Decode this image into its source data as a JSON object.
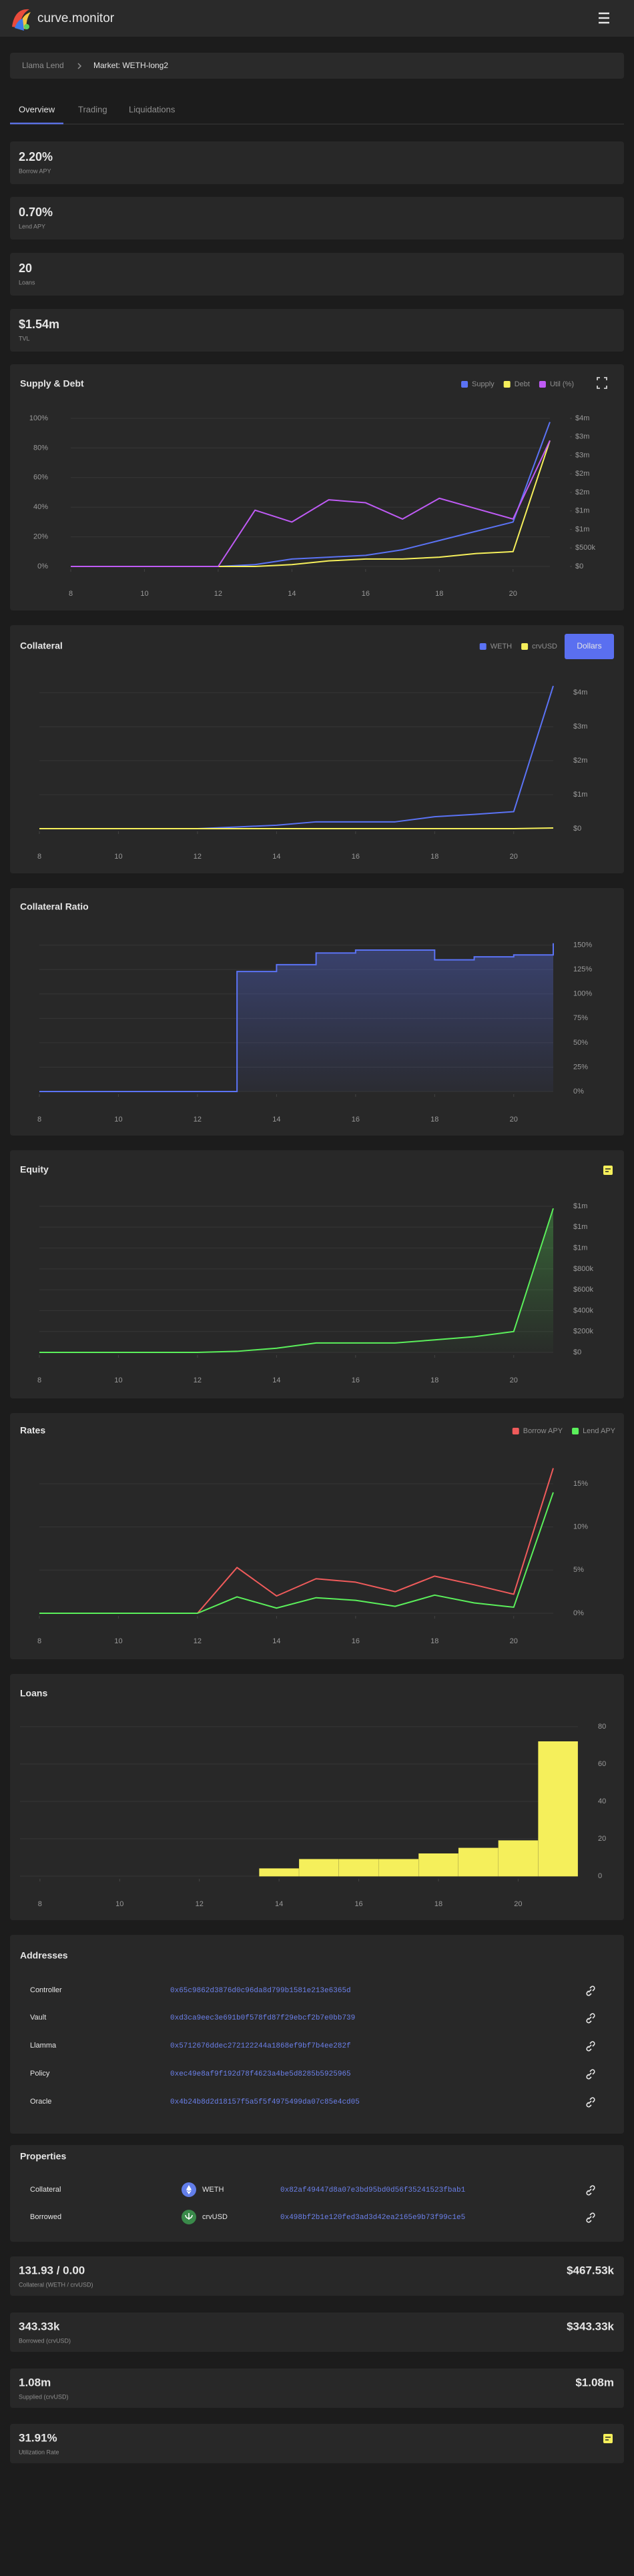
{
  "header": {
    "brand": "curve.monitor"
  },
  "breadcrumb": {
    "parent": "Llama Lend",
    "current": "Market: WETH-long2"
  },
  "tabs": [
    "Overview",
    "Trading",
    "Liquidations"
  ],
  "kpis": [
    {
      "value": "2.20%",
      "label": "Borrow APY"
    },
    {
      "value": "0.70%",
      "label": "Lend APY"
    },
    {
      "value": "20",
      "label": "Loans"
    },
    {
      "value": "$1.54m",
      "label": "TVL"
    }
  ],
  "chart_data": [
    {
      "type": "line",
      "title": "Supply & Debt",
      "x": [
        8,
        9,
        10,
        11,
        12,
        13,
        14,
        15,
        16,
        17,
        18,
        19,
        20,
        21
      ],
      "xlim": [
        8,
        21
      ],
      "xticks": [
        8,
        10,
        12,
        14,
        16,
        18,
        20
      ],
      "ylim": [
        0,
        100
      ],
      "yticks": [
        {
          "value": 0,
          "label": "0%"
        },
        {
          "value": 20,
          "label": "20%"
        },
        {
          "value": 40,
          "label": "40%"
        },
        {
          "value": 60,
          "label": "60%"
        },
        {
          "value": 80,
          "label": "80%"
        },
        {
          "value": 100,
          "label": "100%"
        }
      ],
      "y2lim": [
        0,
        4000000
      ],
      "y2ticks": [
        {
          "value": 0,
          "label": "$0"
        },
        {
          "value": 500000,
          "label": "$500k"
        },
        {
          "value": 1000000,
          "label": "$1m"
        },
        {
          "value": 1500000,
          "label": "$1m"
        },
        {
          "value": 2000000,
          "label": "$2m"
        },
        {
          "value": 2500000,
          "label": "$2m"
        },
        {
          "value": 3000000,
          "label": "$3m"
        },
        {
          "value": 3500000,
          "label": "$3m"
        },
        {
          "value": 4000000,
          "label": "$4m"
        }
      ],
      "grid": true,
      "series": [
        {
          "name": "Supply",
          "color": "#5b73f5",
          "axis": "y2",
          "values": [
            0,
            0,
            0,
            0,
            0,
            50000,
            200000,
            250000,
            300000,
            450000,
            700000,
            950000,
            1200000,
            3900000
          ]
        },
        {
          "name": "Debt",
          "color": "#f5ef5b",
          "axis": "y2",
          "values": [
            0,
            0,
            0,
            0,
            0,
            0,
            50000,
            150000,
            200000,
            200000,
            250000,
            350000,
            400000,
            3400000
          ]
        },
        {
          "name": "Util (%)",
          "color": "#bf5bf5",
          "values": [
            0,
            0,
            0,
            0,
            0,
            38,
            30,
            45,
            43,
            32,
            46,
            39,
            32,
            85
          ]
        }
      ]
    },
    {
      "type": "line",
      "title": "Collateral",
      "button": "Dollars",
      "x": [
        8,
        9,
        10,
        11,
        12,
        13,
        14,
        15,
        16,
        17,
        18,
        19,
        20,
        21
      ],
      "xlim": [
        8,
        21
      ],
      "xticks": [
        8,
        10,
        12,
        14,
        16,
        18,
        20
      ],
      "ylim": [
        0,
        4300000
      ],
      "yticks": [
        {
          "value": 0,
          "label": "$0"
        },
        {
          "value": 1000000,
          "label": "$1m"
        },
        {
          "value": 2000000,
          "label": "$2m"
        },
        {
          "value": 3000000,
          "label": "$3m"
        },
        {
          "value": 4000000,
          "label": "$4m"
        }
      ],
      "y_axis_position": "right",
      "grid": true,
      "series": [
        {
          "name": "WETH",
          "color": "#5b73f5",
          "values": [
            0,
            0,
            0,
            0,
            0,
            50000,
            100000,
            200000,
            200000,
            200000,
            350000,
            420000,
            500000,
            4200000
          ]
        },
        {
          "name": "crvUSD",
          "color": "#f5ef5b",
          "values": [
            0,
            0,
            0,
            0,
            0,
            0,
            0,
            0,
            0,
            0,
            0,
            0,
            0,
            20000
          ]
        }
      ]
    },
    {
      "type": "area",
      "title": "Collateral Ratio",
      "step": true,
      "x": [
        8,
        9,
        10,
        11,
        12,
        13,
        14,
        15,
        16,
        17,
        18,
        19,
        20,
        21
      ],
      "xlim": [
        8,
        21
      ],
      "xticks": [
        8,
        10,
        12,
        14,
        16,
        18,
        20
      ],
      "ylim": [
        0,
        160
      ],
      "yticks": [
        {
          "value": 0,
          "label": "0%"
        },
        {
          "value": 25,
          "label": "25%"
        },
        {
          "value": 50,
          "label": "50%"
        },
        {
          "value": 75,
          "label": "75%"
        },
        {
          "value": 100,
          "label": "100%"
        },
        {
          "value": 125,
          "label": "125%"
        },
        {
          "value": 150,
          "label": "150%"
        }
      ],
      "y_axis_position": "right",
      "grid": true,
      "color": "#5b73f5",
      "values": [
        0,
        0,
        0,
        0,
        0,
        123,
        130,
        142,
        145,
        145,
        135,
        138,
        140,
        152
      ]
    },
    {
      "type": "area",
      "title": "Equity",
      "x": [
        8,
        9,
        10,
        11,
        12,
        13,
        14,
        15,
        16,
        17,
        18,
        19,
        20,
        21
      ],
      "xlim": [
        8,
        21
      ],
      "xticks": [
        8,
        10,
        12,
        14,
        16,
        18,
        20
      ],
      "ylim": [
        0,
        1400000
      ],
      "yticks": [
        {
          "value": 0,
          "label": "$0"
        },
        {
          "value": 200000,
          "label": "$200k"
        },
        {
          "value": 400000,
          "label": "$400k"
        },
        {
          "value": 600000,
          "label": "$600k"
        },
        {
          "value": 800000,
          "label": "$800k"
        },
        {
          "value": 1000000,
          "label": "$1m"
        },
        {
          "value": 1200000,
          "label": "$1m"
        },
        {
          "value": 1400000,
          "label": "$1m"
        }
      ],
      "y_axis_position": "right",
      "grid": true,
      "color": "#5bf05b",
      "values": [
        0,
        0,
        0,
        0,
        0,
        10000,
        40000,
        90000,
        90000,
        90000,
        120000,
        150000,
        200000,
        1380000
      ]
    },
    {
      "type": "line",
      "title": "Rates",
      "x": [
        8,
        9,
        10,
        11,
        12,
        13,
        14,
        15,
        16,
        17,
        18,
        19,
        20,
        21
      ],
      "xlim": [
        8,
        21
      ],
      "xticks": [
        8,
        10,
        12,
        14,
        16,
        18,
        20
      ],
      "ylim": [
        0,
        17
      ],
      "yticks": [
        {
          "value": 0,
          "label": "0%"
        },
        {
          "value": 5,
          "label": "5%"
        },
        {
          "value": 10,
          "label": "10%"
        },
        {
          "value": 15,
          "label": "15%"
        }
      ],
      "y_axis_position": "right",
      "grid": true,
      "series": [
        {
          "name": "Borrow APY",
          "color": "#f05b5b",
          "values": [
            0,
            0,
            0,
            0,
            0,
            5.3,
            2.0,
            4.0,
            3.6,
            2.5,
            4.3,
            3.3,
            2.2,
            16.8
          ]
        },
        {
          "name": "Lend APY",
          "color": "#5bf05b",
          "values": [
            0,
            0,
            0,
            0,
            0,
            1.9,
            0.6,
            1.8,
            1.5,
            0.8,
            2.1,
            1.2,
            0.7,
            14.0
          ]
        }
      ]
    },
    {
      "type": "histogram",
      "title": "Loans",
      "bins": [
        7.5,
        8.5,
        9.5,
        10.5,
        11.5,
        12.5,
        13.5,
        14.5,
        15.5,
        16.5,
        17.5,
        18.5,
        19.5,
        20.5,
        21.5
      ],
      "values": [
        0,
        0,
        0,
        0,
        0,
        0,
        4,
        9,
        9,
        9,
        12,
        15,
        19,
        72
      ],
      "color": "#f5ef5b",
      "xlim": [
        7.5,
        21.5
      ],
      "xticks": [
        8,
        10,
        12,
        14,
        16,
        18,
        20
      ],
      "ylim": [
        0,
        80
      ],
      "yticks": [
        0,
        20,
        40,
        60,
        80
      ],
      "y_axis_position": "right",
      "grid": true
    }
  ],
  "addresses": {
    "title": "Addresses",
    "rows": [
      {
        "label": "Controller",
        "address": "0x65c9862d3876d0c96da8d799b1581e213e6365d"
      },
      {
        "label": "Vault",
        "address": "0xd3ca9eec3e691b0f578fd87f29ebcf2b7e0bb739"
      },
      {
        "label": "Llamma",
        "address": "0x5712676ddec272122244a1868ef9bf7b4ee282f"
      },
      {
        "label": "Policy",
        "address": "0xec49e8af9f192d78f4623a4be5d8285b5925965"
      },
      {
        "label": "Oracle",
        "address": "0x4b24b8d2d18157f5a5f5f4975499da07c85e4cd05"
      }
    ]
  },
  "properties": {
    "title": "Properties",
    "rows": [
      {
        "label": "Collateral",
        "symbol": "WETH",
        "address": "0x82af49447d8a07e3bd95bd0d56f35241523fbab1"
      },
      {
        "label": "Borrowed",
        "symbol": "crvUSD",
        "address": "0x498bf2b1e120fed3ad3d42ea2165e9b73f99c1e5"
      }
    ]
  },
  "stats": [
    {
      "value": "131.93 / 0.00",
      "label": "Collateral (WETH / crvUSD)",
      "usd": "$467.53k"
    },
    {
      "value": "343.33k",
      "label": "Borrowed (crvUSD)",
      "usd": "$343.33k"
    },
    {
      "value": "1.08m",
      "label": "Supplied (crvUSD)",
      "usd": "$1.08m"
    },
    {
      "value": "31.91%",
      "label": "Utilization Rate"
    }
  ]
}
